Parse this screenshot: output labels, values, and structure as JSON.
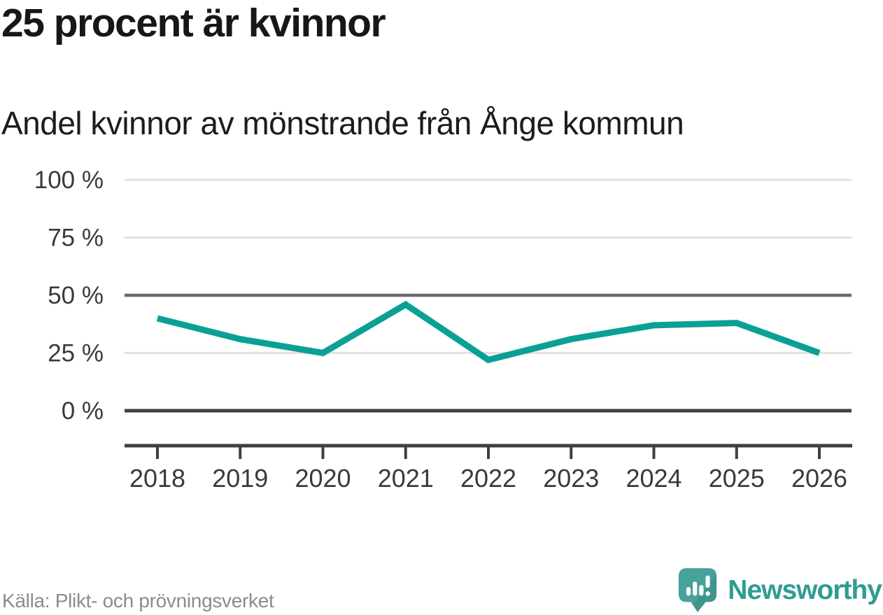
{
  "header": {
    "title": "25 procent är kvinnor",
    "subtitle": "Andel kvinnor av mönstrande från Ånge kommun"
  },
  "chart_data": {
    "type": "line",
    "x": [
      2018,
      2019,
      2020,
      2021,
      2022,
      2023,
      2024,
      2025,
      2026
    ],
    "series": [
      {
        "name": "Andel kvinnor av mönstrande",
        "values": [
          40,
          31,
          25,
          46,
          22,
          31,
          37,
          38,
          25
        ]
      }
    ],
    "unit": "%",
    "title": "25 procent är kvinnor",
    "subtitle": "Andel kvinnor av mönstrande från Ånge kommun",
    "xlabel": "",
    "ylabel": "",
    "ylim": [
      0,
      100
    ],
    "yticks": [
      0,
      25,
      50,
      75,
      100
    ],
    "ytick_labels": [
      "0 %",
      "25 %",
      "50 %",
      "75 %",
      "100 %"
    ],
    "xtick_labels": [
      "2018",
      "2019",
      "2020",
      "2021",
      "2022",
      "2023",
      "2024",
      "2025",
      "2026"
    ],
    "grid": true,
    "reference_line": 50,
    "legend": "none"
  },
  "footer": {
    "source": "Källa: Plikt- och prövningsverket",
    "brand": "Newsworthy"
  },
  "colors": {
    "line": "#0aa096",
    "grid_light": "#e2e2e2",
    "grid_reference": "#6a6a6e",
    "axis_dark": "#3f3f41",
    "tick_label": "#3a3a3a",
    "title_text": "#171717",
    "source_text": "#8b8b90",
    "brand_teal": "#2f9c93",
    "logo_bubble": "#46a29a"
  }
}
